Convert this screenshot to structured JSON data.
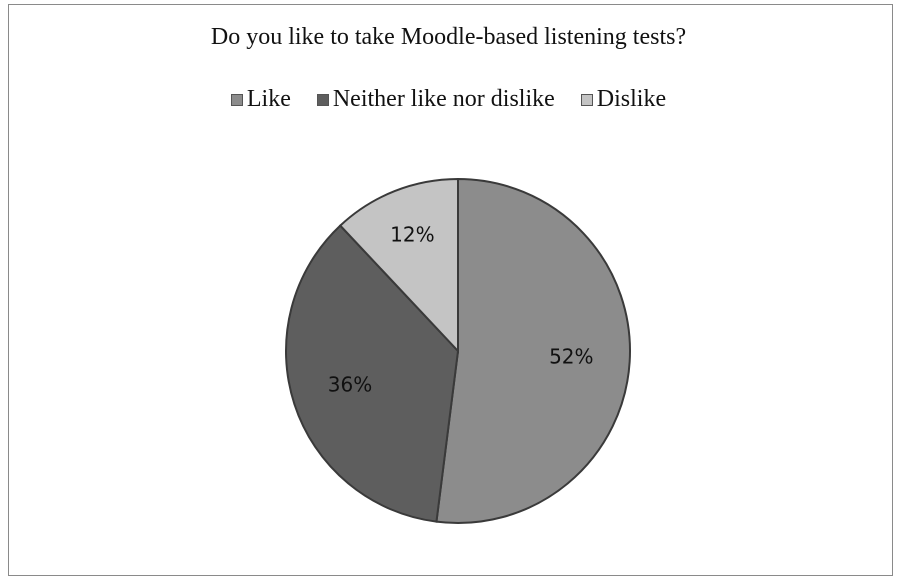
{
  "chart_data": {
    "type": "pie",
    "title": "Do you like to take Moodle-based listening tests?",
    "categories": [
      "Like",
      "Neither like nor dislike",
      "Dislike"
    ],
    "values": [
      52,
      36,
      12
    ],
    "data_labels": [
      "52%",
      "36%",
      "12%"
    ],
    "colors": [
      "#8c8c8c",
      "#5e5e5e",
      "#c4c4c4"
    ],
    "legend_position": "top",
    "start_angle_deg": 0,
    "direction": "clockwise"
  }
}
